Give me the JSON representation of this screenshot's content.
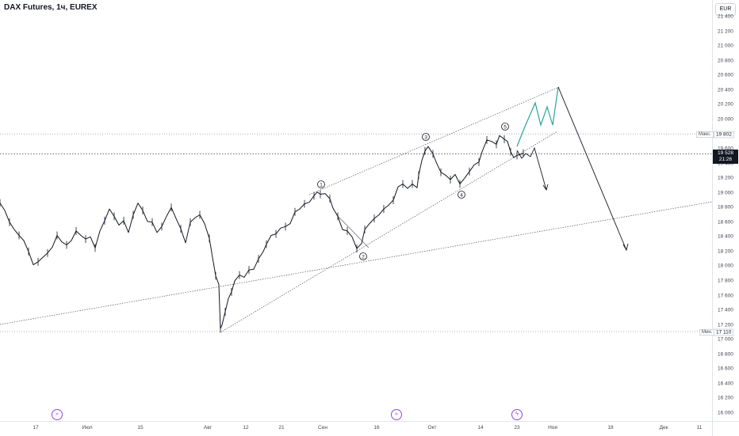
{
  "header": {
    "symbol_title": "DAX Futures, 1ч, EUREX",
    "currency": "EUR"
  },
  "colors": {
    "price": "#131722",
    "forecast_up": "#26a69a",
    "forecast_line": "#131722",
    "dotted": "#787b86",
    "event": "#8c4adb"
  },
  "icons": [
    "event-forward-icon",
    "event-forward-icon",
    "lightning-icon"
  ],
  "chart_data": {
    "type": "line",
    "title": "DAX Futures, 1ч, EUREX",
    "ylim": [
      15900,
      21400
    ],
    "yticks": [
      "21 400",
      "21 200",
      "21 000",
      "20 800",
      "20 600",
      "20 400",
      "20 200",
      "20 000",
      "19 800",
      "19 600",
      "19 400",
      "19 200",
      "19 000",
      "18 800",
      "18 600",
      "18 400",
      "18 200",
      "18 000",
      "17 800",
      "17 600",
      "17 400",
      "17 200",
      "17 000",
      "16 800",
      "16 600",
      "16 400",
      "16 200",
      "16 000"
    ],
    "ytick_values": [
      21400,
      21200,
      21000,
      20800,
      20600,
      20400,
      20200,
      20000,
      19800,
      19600,
      19400,
      19200,
      19000,
      18800,
      18600,
      18400,
      18200,
      18000,
      17800,
      17600,
      17400,
      17200,
      17000,
      16800,
      16600,
      16400,
      16200,
      16000
    ],
    "xticks": [
      "17",
      "Июл",
      "15",
      "Авг",
      "12",
      "21",
      "Сен",
      "16",
      "Окт",
      "14",
      "23",
      "Ноя",
      "18",
      "Дек",
      "11"
    ],
    "reference_lines": {
      "max": {
        "label": "Макс.",
        "value": "19 802",
        "y": 19802
      },
      "min": {
        "label": "Мин.",
        "value": "17 110",
        "y": 17110
      }
    },
    "last_price": {
      "value": "19 528",
      "countdown": "21:26",
      "y": 19528
    },
    "wave_labels": [
      "1",
      "2",
      "3",
      "4",
      "5"
    ],
    "price_path": [
      [
        0,
        18860
      ],
      [
        6,
        18760
      ],
      [
        12,
        18600
      ],
      [
        18,
        18500
      ],
      [
        24,
        18420
      ],
      [
        30,
        18350
      ],
      [
        36,
        18200
      ],
      [
        42,
        18020
      ],
      [
        48,
        18060
      ],
      [
        54,
        18120
      ],
      [
        60,
        18180
      ],
      [
        66,
        18260
      ],
      [
        72,
        18420
      ],
      [
        78,
        18330
      ],
      [
        84,
        18290
      ],
      [
        90,
        18350
      ],
      [
        96,
        18480
      ],
      [
        102,
        18420
      ],
      [
        108,
        18370
      ],
      [
        114,
        18400
      ],
      [
        120,
        18250
      ],
      [
        126,
        18480
      ],
      [
        132,
        18620
      ],
      [
        138,
        18780
      ],
      [
        144,
        18680
      ],
      [
        150,
        18560
      ],
      [
        156,
        18620
      ],
      [
        162,
        18460
      ],
      [
        168,
        18700
      ],
      [
        174,
        18860
      ],
      [
        180,
        18760
      ],
      [
        186,
        18610
      ],
      [
        192,
        18600
      ],
      [
        198,
        18460
      ],
      [
        204,
        18540
      ],
      [
        210,
        18680
      ],
      [
        216,
        18800
      ],
      [
        222,
        18650
      ],
      [
        228,
        18510
      ],
      [
        234,
        18320
      ],
      [
        240,
        18600
      ],
      [
        246,
        18660
      ],
      [
        252,
        18700
      ],
      [
        258,
        18580
      ],
      [
        264,
        18380
      ],
      [
        268,
        18120
      ],
      [
        272,
        17870
      ],
      [
        276,
        17750
      ],
      [
        278,
        17150
      ],
      [
        280,
        17200
      ],
      [
        284,
        17380
      ],
      [
        288,
        17560
      ],
      [
        292,
        17650
      ],
      [
        296,
        17800
      ],
      [
        302,
        17880
      ],
      [
        308,
        17850
      ],
      [
        314,
        17950
      ],
      [
        320,
        17960
      ],
      [
        326,
        18100
      ],
      [
        332,
        18200
      ],
      [
        336,
        18300
      ],
      [
        342,
        18420
      ],
      [
        348,
        18440
      ],
      [
        354,
        18520
      ],
      [
        360,
        18540
      ],
      [
        366,
        18580
      ],
      [
        372,
        18740
      ],
      [
        378,
        18780
      ],
      [
        384,
        18850
      ],
      [
        390,
        18870
      ],
      [
        396,
        18960
      ],
      [
        400,
        19010
      ],
      [
        404,
        18980
      ],
      [
        410,
        18990
      ],
      [
        416,
        18920
      ],
      [
        420,
        18790
      ],
      [
        426,
        18680
      ],
      [
        432,
        18500
      ],
      [
        438,
        18480
      ],
      [
        444,
        18400
      ],
      [
        450,
        18240
      ],
      [
        456,
        18310
      ],
      [
        460,
        18500
      ],
      [
        466,
        18580
      ],
      [
        472,
        18650
      ],
      [
        478,
        18700
      ],
      [
        484,
        18780
      ],
      [
        490,
        18830
      ],
      [
        496,
        18900
      ],
      [
        502,
        19080
      ],
      [
        508,
        19120
      ],
      [
        514,
        19060
      ],
      [
        520,
        19120
      ],
      [
        526,
        19070
      ],
      [
        528,
        19240
      ],
      [
        532,
        19440
      ],
      [
        536,
        19570
      ],
      [
        540,
        19630
      ],
      [
        546,
        19530
      ],
      [
        550,
        19420
      ],
      [
        556,
        19280
      ],
      [
        562,
        19240
      ],
      [
        568,
        19180
      ],
      [
        574,
        19250
      ],
      [
        580,
        19120
      ],
      [
        586,
        19200
      ],
      [
        592,
        19290
      ],
      [
        598,
        19380
      ],
      [
        604,
        19420
      ],
      [
        608,
        19560
      ],
      [
        614,
        19720
      ],
      [
        620,
        19700
      ],
      [
        626,
        19660
      ],
      [
        630,
        19780
      ],
      [
        636,
        19730
      ],
      [
        640,
        19700
      ],
      [
        644,
        19560
      ],
      [
        648,
        19480
      ],
      [
        652,
        19510
      ],
      [
        656,
        19520
      ],
      [
        660,
        19540
      ]
    ]
  },
  "drawing_overlays": {
    "wave_labels": [
      "1",
      "2",
      "3",
      "4",
      "5"
    ]
  }
}
